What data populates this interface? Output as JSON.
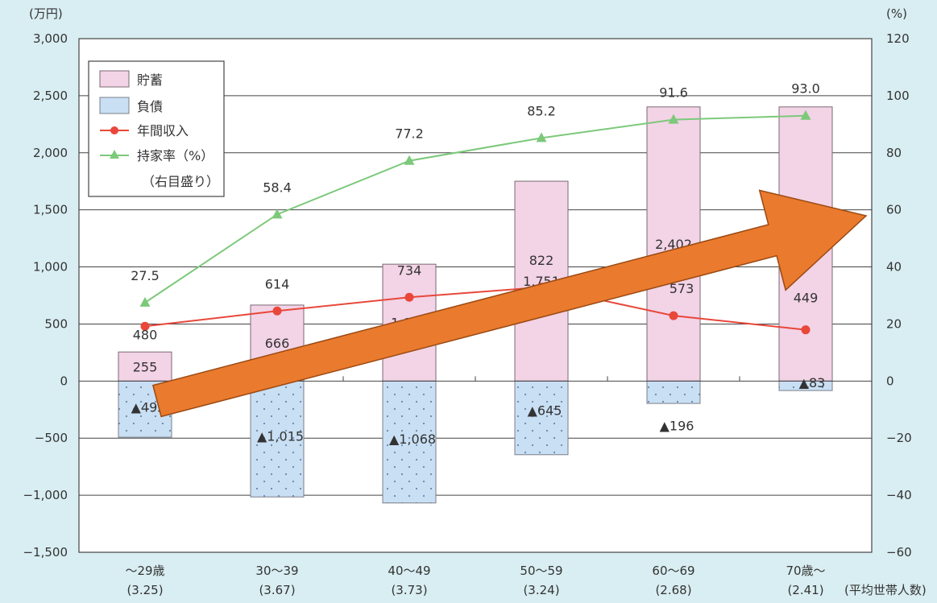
{
  "chart_data": {
    "type": "bar",
    "left_unit": "(万円)",
    "right_unit": "(%)",
    "left_ticks": [
      "3,000",
      "2,500",
      "2,000",
      "1,500",
      "1,000",
      "500",
      "0",
      "−500",
      "−1,000",
      "−1,500"
    ],
    "right_ticks": [
      "120",
      "100",
      "80",
      "60",
      "40",
      "20",
      "0",
      "−20",
      "−40",
      "−60"
    ],
    "ylim_left": [
      -1500,
      3000
    ],
    "ylim_right": [
      -60,
      120
    ],
    "categories": [
      "～29歳",
      "30～39",
      "40～49",
      "50～59",
      "60～69",
      "70歳～"
    ],
    "category_sublabels": [
      "(3.25)",
      "(3.67)",
      "(3.73)",
      "(3.24)",
      "(2.68)",
      "(2.41)"
    ],
    "household_note": "(平均世帯人数)",
    "legend": {
      "savings": "貯蓄",
      "debt": "負債",
      "income": "年間収入",
      "ownership": "持家率（%）",
      "ownership_note": "（右目盛り）"
    },
    "series": [
      {
        "name": "貯蓄",
        "values": [
          255,
          666,
          1024,
          1751,
          2402,
          2402
        ],
        "labels": [
          "255",
          "666",
          "1,024",
          "1,751",
          "2,402",
          ""
        ]
      },
      {
        "name": "負債",
        "values": [
          -492,
          -1015,
          -1068,
          -645,
          -196,
          -83
        ],
        "labels": [
          "▲492",
          "▲1,015",
          "▲1,068",
          "▲645",
          "▲196",
          "▲83"
        ]
      },
      {
        "name": "年間収入",
        "values": [
          480,
          614,
          734,
          822,
          573,
          449
        ],
        "labels": [
          "480",
          "614",
          "734",
          "822",
          "573",
          "449"
        ]
      },
      {
        "name": "持家率（%）",
        "values": [
          27.5,
          58.4,
          77.2,
          85.2,
          91.6,
          93.0
        ],
        "labels": [
          "27.5",
          "58.4",
          "77.2",
          "85.2",
          "91.6",
          "93.0"
        ]
      }
    ],
    "colors": {
      "savings_fill": "#f3d3e6",
      "savings_stroke": "#7a6a72",
      "debt_fill": "#c9dff4",
      "debt_stroke": "#7a7f88",
      "income": "#e8473a",
      "ownership": "#7cc97a",
      "arrow": "#ea7a2d",
      "grid": "#444444"
    },
    "grid": true,
    "legend_position": "top-left",
    "overlay": "large orange arrow pointing up-right"
  }
}
